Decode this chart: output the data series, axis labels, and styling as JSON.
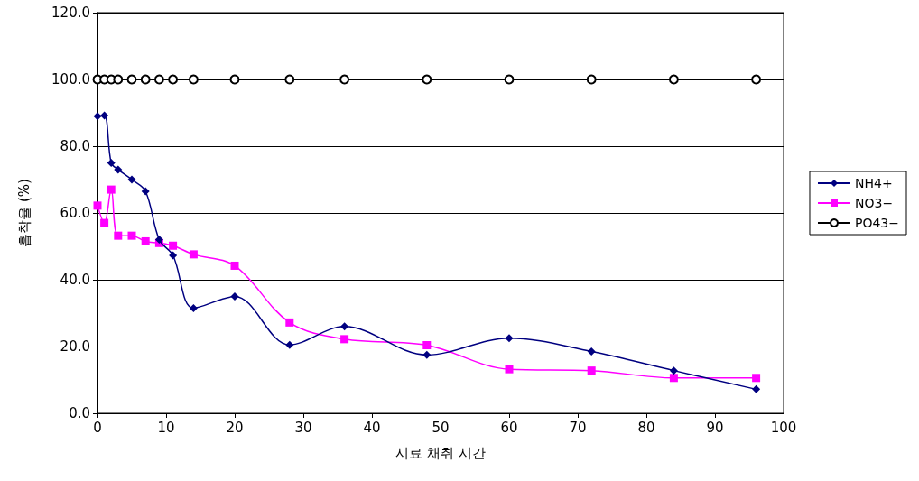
{
  "chart_data": {
    "type": "line",
    "xlabel": "시료 채취 시간",
    "ylabel": "흡착율 (%)",
    "x": [
      0,
      1,
      2,
      3,
      5,
      7,
      9,
      11,
      14,
      20,
      28,
      36,
      48,
      60,
      72,
      84,
      96
    ],
    "series": [
      {
        "name": "NH4+",
        "color": "#000080",
        "marker": "diamond",
        "values": [
          89,
          89.2,
          75,
          73,
          70,
          66.5,
          52,
          47.3,
          31.5,
          35,
          20.5,
          26,
          17.5,
          22.5,
          18.5,
          12.8,
          7.2
        ]
      },
      {
        "name": "NO3−",
        "color": "#ff00ff",
        "marker": "square",
        "values": [
          62.2,
          57,
          67,
          53.2,
          53.2,
          51.5,
          51,
          50.2,
          47.6,
          44.2,
          27.2,
          22.2,
          20.4,
          13.2,
          12.8,
          10.6,
          10.6
        ]
      },
      {
        "name": "PO43−",
        "color": "#000000",
        "marker": "circle",
        "values": [
          100,
          100,
          100,
          100,
          100,
          100,
          100,
          100,
          100,
          100,
          100,
          100,
          100,
          100,
          100,
          100,
          100
        ]
      }
    ],
    "xlim": [
      0,
      100
    ],
    "xticks": [
      0,
      10,
      20,
      30,
      40,
      50,
      60,
      70,
      80,
      90,
      100
    ],
    "ylim": [
      0,
      120
    ],
    "yticks": [
      {
        "value": 0,
        "label": "0.0"
      },
      {
        "value": 20,
        "label": "20.0"
      },
      {
        "value": 40,
        "label": "40.0"
      },
      {
        "value": 60,
        "label": "60.0"
      },
      {
        "value": 80,
        "label": "80.0"
      },
      {
        "value": 100,
        "label": "100.0"
      },
      {
        "value": 120,
        "label": "120.0"
      }
    ],
    "grid": "y",
    "legend": "right",
    "line_style": "solid"
  }
}
